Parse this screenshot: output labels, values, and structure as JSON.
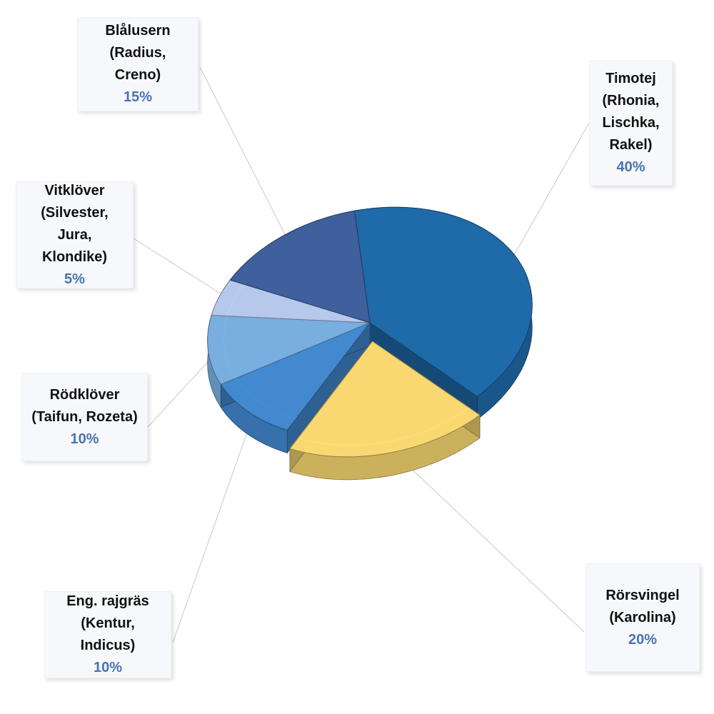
{
  "chart_data": {
    "type": "pie",
    "title": "",
    "slices": [
      {
        "label": "Timotej (Rhonia, Lischka, Rakel)",
        "label_lines": [
          "Timotej",
          "(Rhonia,",
          "Lischka,",
          "Rakel)"
        ],
        "value": 40,
        "display": "40%",
        "color": "#1f6aa8"
      },
      {
        "label": "Rörsvingel (Karolina)",
        "label_lines": [
          "Rörsvingel",
          "(Karolina)"
        ],
        "value": 20,
        "display": "20%",
        "color": "#f9d872"
      },
      {
        "label": "Eng. rajgräs (Kentur, Indicus)",
        "label_lines": [
          "Eng. rajgräs",
          "(Kentur, Indicus)"
        ],
        "value": 10,
        "display": "10%",
        "color": "#4389d0"
      },
      {
        "label": "Rödklöver (Taifun, Rozeta)",
        "label_lines": [
          "Rödklöver",
          "(Taifun, Rozeta)"
        ],
        "value": 10,
        "display": "10%",
        "color": "#78aee0"
      },
      {
        "label": "Vitklöver (Silvester, Jura, Klondike)",
        "label_lines": [
          "Vitklöver",
          "(Silvester, Jura,",
          "Klondike)"
        ],
        "value": 5,
        "display": "5%",
        "color": "#b6c8ec"
      },
      {
        "label": "Blålusern (Radius, Creno)",
        "label_lines": [
          "Blålusern",
          "(Radius, Creno)"
        ],
        "value": 15,
        "display": "15%",
        "color": "#3f5f9d"
      }
    ],
    "exploded": [
      "Rörsvingel (Karolina)"
    ],
    "style": "3d",
    "legend": "none",
    "percent_color": "#4a72b4",
    "leader_line_color": "#c8c8c8"
  }
}
